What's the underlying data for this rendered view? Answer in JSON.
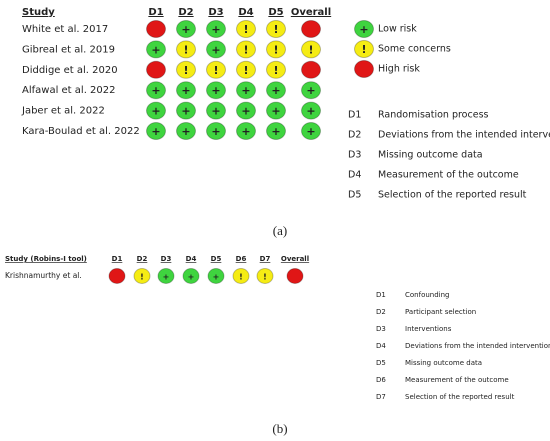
{
  "legend": [
    {
      "symbol": "+",
      "label": "Low risk",
      "color": "#3fd43f"
    },
    {
      "symbol": "!",
      "label": "Some concerns",
      "color": "#f5ec14"
    },
    {
      "label": "High risk",
      "color": "#e01616"
    }
  ],
  "panel_a": {
    "header": {
      "study": "Study",
      "columns": [
        "D1",
        "D2",
        "D3",
        "D4",
        "D5",
        "Overall"
      ]
    },
    "rows": [
      {
        "study": "White et al. 2017",
        "cells": [
          2,
          0,
          0,
          1,
          1,
          2
        ]
      },
      {
        "study": "Gibreal et al. 2019",
        "cells": [
          0,
          1,
          0,
          1,
          1,
          1
        ]
      },
      {
        "study": "Diddige et al. 2020",
        "cells": [
          2,
          1,
          1,
          1,
          1,
          2
        ]
      },
      {
        "study": "Alfawal et al. 2022",
        "cells": [
          0,
          0,
          0,
          0,
          0,
          0
        ]
      },
      {
        "study": "Jaber et al. 2022",
        "cells": [
          0,
          0,
          0,
          0,
          0,
          0
        ]
      },
      {
        "study": "Kara-Boulad et al. 2022",
        "cells": [
          0,
          0,
          0,
          0,
          0,
          0
        ]
      }
    ],
    "definitions": [
      {
        "code": "D1",
        "text": "Randomisation process"
      },
      {
        "code": "D2",
        "text": "Deviations from the intended interventions"
      },
      {
        "code": "D3",
        "text": "Missing outcome data"
      },
      {
        "code": "D4",
        "text": "Measurement of the outcome"
      },
      {
        "code": "D5",
        "text": "Selection of the reported result"
      }
    ],
    "caption": "(a)"
  },
  "panel_b": {
    "header": {
      "study": "Study (Robins-I tool)",
      "columns": [
        "D1",
        "D2",
        "D3",
        "D4",
        "D5",
        "D6",
        "D7",
        "Overall"
      ]
    },
    "rows": [
      {
        "study": "Krishnamurthy et al.",
        "cells": [
          2,
          1,
          0,
          0,
          0,
          1,
          1,
          2
        ]
      }
    ],
    "definitions": [
      {
        "code": "D1",
        "text": "Confounding"
      },
      {
        "code": "D2",
        "text": "Participant selection"
      },
      {
        "code": "D3",
        "text": "Interventions"
      },
      {
        "code": "D4",
        "text": "Deviations from the intended interventions"
      },
      {
        "code": "D5",
        "text": "Missing outcome data"
      },
      {
        "code": "D6",
        "text": "Measurement of the outcome"
      },
      {
        "code": "D7",
        "text": "Selection of the reported result"
      }
    ],
    "caption": "(b)"
  }
}
